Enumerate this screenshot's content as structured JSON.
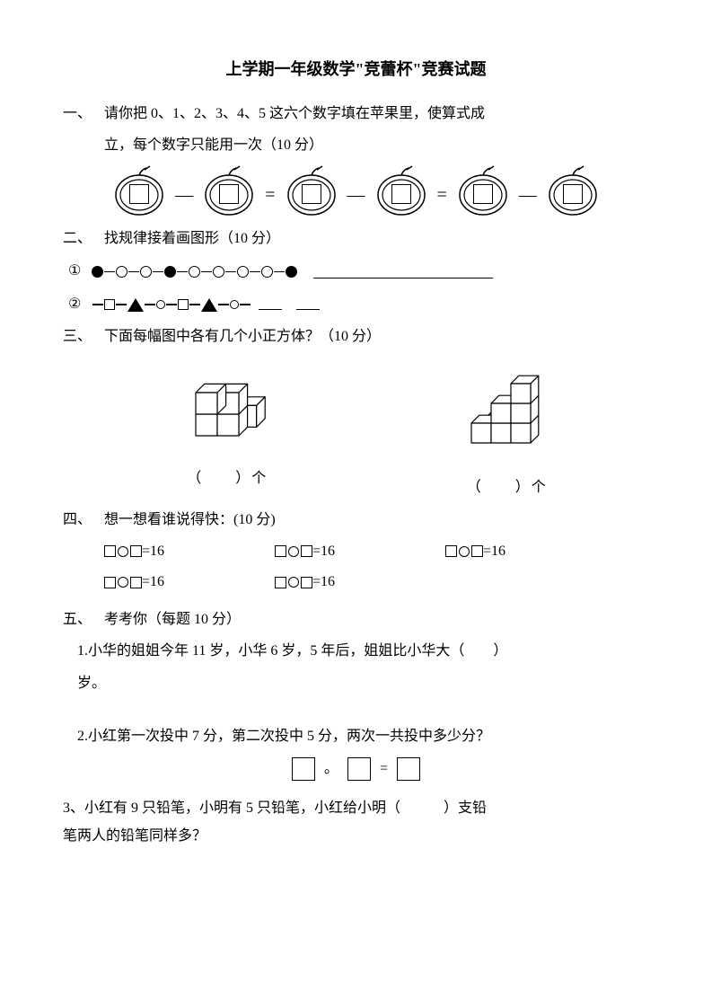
{
  "title": "上学期一年级数学\"竞蕾杯\"竞赛试题",
  "colors": {
    "text": "#000000",
    "bg": "#ffffff"
  },
  "s1": {
    "num": "一、",
    "line1": "请你把 0、1、2、3、4、5 这六个数字填在苹果里，使算式成",
    "line2": "立，每个数字只能用一次（10 分）",
    "minus": "—",
    "equals": "="
  },
  "s2": {
    "num": "二、",
    "text": "找规律接着画图形（10 分）",
    "p1_label": "①",
    "p2_label": "②",
    "pattern1": [
      "filled",
      "open",
      "open",
      "filled",
      "open",
      "open",
      "open",
      "open",
      "filled"
    ],
    "blank1_width": 200,
    "pattern2_seq": [
      {
        "t": "link"
      },
      {
        "t": "sq"
      },
      {
        "t": "link"
      },
      {
        "t": "tri"
      },
      {
        "t": "link"
      },
      {
        "t": "circ"
      },
      {
        "t": "link"
      },
      {
        "t": "sq"
      },
      {
        "t": "link"
      },
      {
        "t": "tri"
      },
      {
        "t": "link"
      },
      {
        "t": "circ"
      },
      {
        "t": "link"
      }
    ]
  },
  "s3": {
    "num": "三、",
    "text": "下面每幅图中各有几个小正方体？（10 分）",
    "label": "（　　）个"
  },
  "s4": {
    "num": "四、",
    "text": "想一想看谁说得快：(10 分)",
    "eq_suffix": "=16",
    "count": 5
  },
  "s5": {
    "num": "五、",
    "text": "考考你（每题 10 分）",
    "q1": "1.小华的姐姐今年 11 岁，小华 6 岁，5 年后，姐姐比小华大（　　）",
    "q1b": "岁。",
    "q2": "2.小红第一次投中 7 分，第二次投中 5 分，两次一共投中多少分？",
    "q2_eq": {
      "circ": "。",
      "eq": "="
    },
    "q3a": "3、小红有 9 只铅笔，小明有 5 只铅笔，小红给小明（　　　）支铅",
    "q3b": "笔两人的铅笔同样多？"
  }
}
